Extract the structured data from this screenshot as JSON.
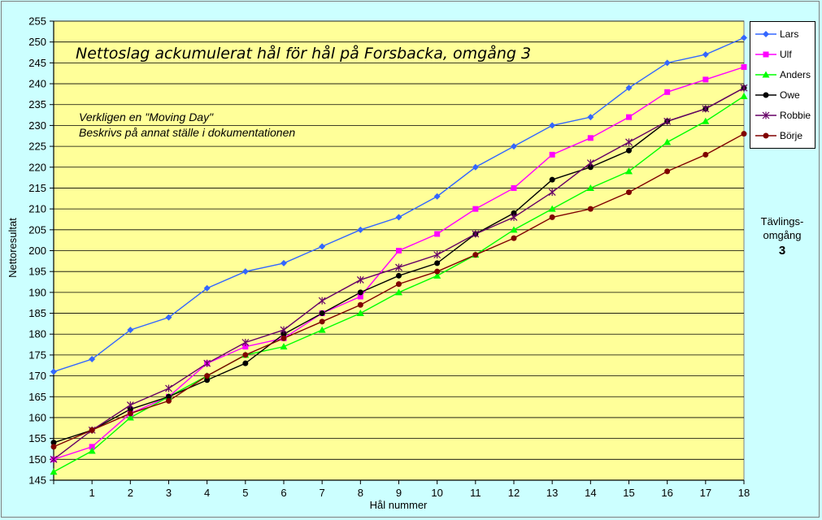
{
  "chart_data": {
    "type": "line",
    "title": "Nettoslag ackumulerat hål för hål på Forsbacka, omgång 3",
    "annotations": [
      "Verkligen en \"Moving Day\"",
      "Beskrivs på annat ställe i dokumentationen"
    ],
    "xlabel": "Hål nummer",
    "ylabel": "Nettoresultat",
    "x": [
      0,
      1,
      2,
      3,
      4,
      5,
      6,
      7,
      8,
      9,
      10,
      11,
      12,
      13,
      14,
      15,
      16,
      17,
      18
    ],
    "x_tick_labels": [
      "1",
      "2",
      "3",
      "4",
      "5",
      "6",
      "7",
      "8",
      "9",
      "10",
      "11",
      "12",
      "13",
      "14",
      "15",
      "16",
      "17",
      "18"
    ],
    "ylim": [
      145,
      255
    ],
    "y_ticks": [
      145,
      150,
      155,
      160,
      165,
      170,
      175,
      180,
      185,
      190,
      195,
      200,
      205,
      210,
      215,
      220,
      225,
      230,
      235,
      240,
      245,
      250,
      255
    ],
    "grid": true,
    "legend_position": "right",
    "series": [
      {
        "name": "Lars",
        "color": "#3366ff",
        "marker": "diamond",
        "values": [
          171,
          174,
          181,
          184,
          191,
          195,
          197,
          201,
          205,
          208,
          213,
          220,
          225,
          230,
          232,
          239,
          245,
          247,
          251
        ]
      },
      {
        "name": "Ulf",
        "color": "#ff00ff",
        "marker": "square",
        "values": [
          150,
          153,
          161,
          165,
          173,
          177,
          179,
          185,
          189,
          200,
          204,
          210,
          215,
          223,
          227,
          232,
          238,
          241,
          244
        ]
      },
      {
        "name": "Anders",
        "color": "#00ff00",
        "marker": "triangle",
        "values": [
          147,
          152,
          160,
          165,
          170,
          175,
          177,
          181,
          185,
          190,
          194,
          199,
          205,
          210,
          215,
          219,
          226,
          231,
          237
        ]
      },
      {
        "name": "Owe",
        "color": "#000000",
        "marker": "circle",
        "values": [
          154,
          157,
          162,
          165,
          169,
          173,
          180,
          185,
          190,
          194,
          197,
          204,
          209,
          217,
          220,
          224,
          231,
          234,
          239
        ]
      },
      {
        "name": "Robbie",
        "color": "#660066",
        "marker": "star",
        "values": [
          150,
          157,
          163,
          167,
          173,
          178,
          181,
          188,
          193,
          196,
          199,
          204,
          208,
          214,
          221,
          226,
          231,
          234,
          239
        ]
      },
      {
        "name": "Börje",
        "color": "#800000",
        "marker": "circle",
        "values": [
          153,
          157,
          161,
          164,
          170,
          175,
          179,
          183,
          187,
          192,
          195,
          199,
          203,
          208,
          210,
          214,
          219,
          223,
          228
        ]
      }
    ]
  },
  "side_label": {
    "line1": "Tävlings-",
    "line2": "omgång",
    "number": "3"
  }
}
